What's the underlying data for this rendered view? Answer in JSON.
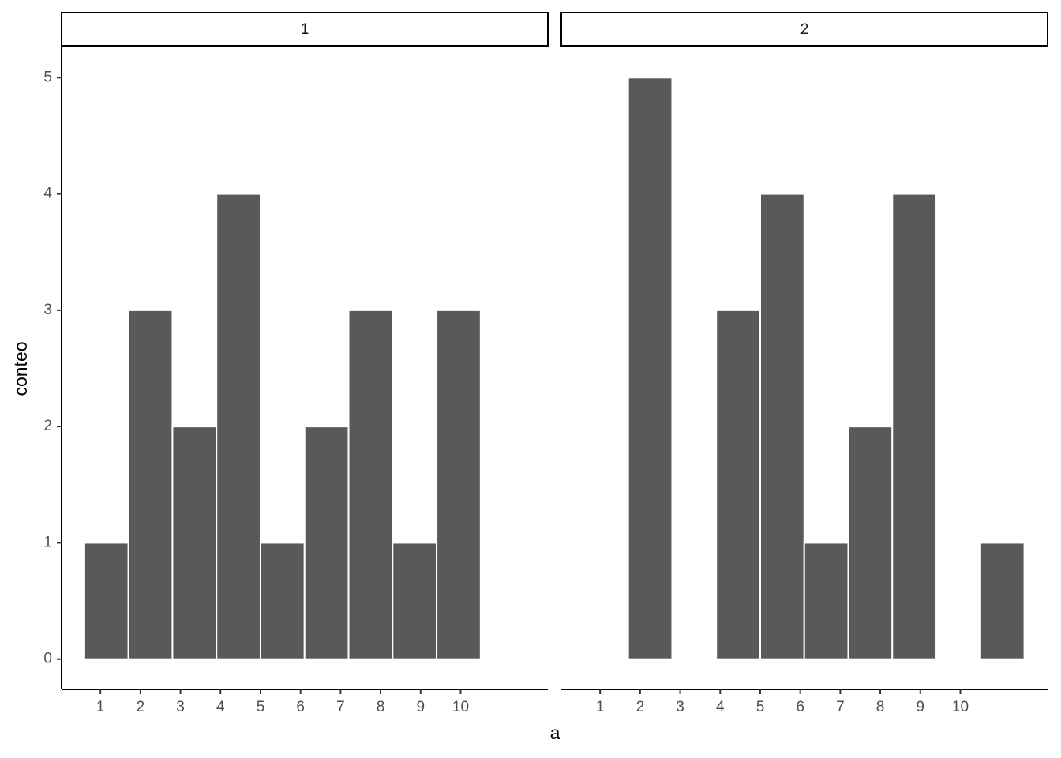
{
  "chart_data": [
    {
      "type": "histogram",
      "title": "1",
      "xlabel": "a",
      "ylabel": "conteo",
      "color": "#595959",
      "bins": [
        0.6,
        1.7,
        2.8,
        3.9,
        5.0,
        6.1,
        7.2,
        8.3,
        9.4,
        10.5,
        11.6
      ],
      "values": [
        1,
        3,
        2,
        4,
        1,
        2,
        3,
        1,
        3,
        0
      ],
      "xlim": [
        0.03,
        12.18
      ],
      "ylim": [
        -0.26,
        5.26
      ],
      "xticks": [
        1,
        2,
        3,
        4,
        5,
        6,
        7,
        8,
        9,
        10
      ],
      "yticks": [
        0,
        1,
        2,
        3,
        4,
        5
      ]
    },
    {
      "type": "histogram",
      "title": "2",
      "color": "#595959",
      "bins": [
        0.6,
        1.7,
        2.8,
        3.9,
        5.0,
        6.1,
        7.2,
        8.3,
        9.4,
        10.5,
        11.6
      ],
      "values": [
        0,
        5,
        0,
        3,
        4,
        1,
        2,
        4,
        0,
        1
      ],
      "xlim": [
        0.03,
        12.18
      ],
      "ylim": [
        -0.26,
        5.26
      ],
      "xticks": [
        1,
        2,
        3,
        4,
        5,
        6,
        7,
        8,
        9,
        10
      ]
    }
  ]
}
